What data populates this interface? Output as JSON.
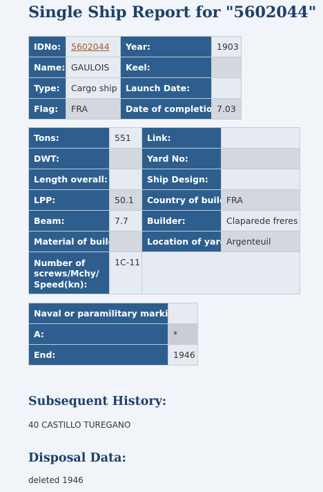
{
  "page_title": "Single Ship Report for \"5602044\"",
  "general": {
    "idno_label": "IDNo:",
    "idno_value": "5602044",
    "year_label": "Year:",
    "year_value": "1903",
    "name_label": "Name:",
    "name_value": "GAULOIS",
    "keel_label": "Keel:",
    "keel_value": "",
    "type_label": "Type:",
    "type_value": "Cargo ship",
    "launch_label": "Launch Date:",
    "launch_value": "",
    "flag_label": "Flag:",
    "flag_value": "FRA",
    "completion_label": "Date of completion:",
    "completion_value": "7.03"
  },
  "specs": {
    "tons_label": "Tons:",
    "tons_value": "551",
    "link_label": "Link:",
    "link_value": "",
    "dwt_label": "DWT:",
    "dwt_value": "",
    "yard_no_label": "Yard No:",
    "yard_no_value": "",
    "length_label": "Length overall:",
    "length_value": "",
    "design_label": "Ship Design:",
    "design_value": "",
    "lpp_label": "LPP:",
    "lpp_value": "50.1",
    "country_label": "Country of build:",
    "country_value": "FRA",
    "beam_label": "Beam:",
    "beam_value": "7.7",
    "builder_label": "Builder:",
    "builder_value": "Claparede freres",
    "material_label": "Material of build:",
    "material_value": "",
    "location_label": "Location of yard:",
    "location_value": "Argenteuil",
    "screws_label": "Number of screws/Mchy/ Speed(kn):",
    "screws_value": "1C-11"
  },
  "naval": {
    "marking_label": "Naval or paramilitary marking :",
    "marking_value": "",
    "a_label": "A:",
    "a_value": "*",
    "end_label": "End:",
    "end_value": "1946"
  },
  "history": {
    "title": "Subsequent History:",
    "text": "40 CASTILLO TUREGANO"
  },
  "disposal": {
    "title": "Disposal Data:",
    "text": "deleted 1946"
  }
}
